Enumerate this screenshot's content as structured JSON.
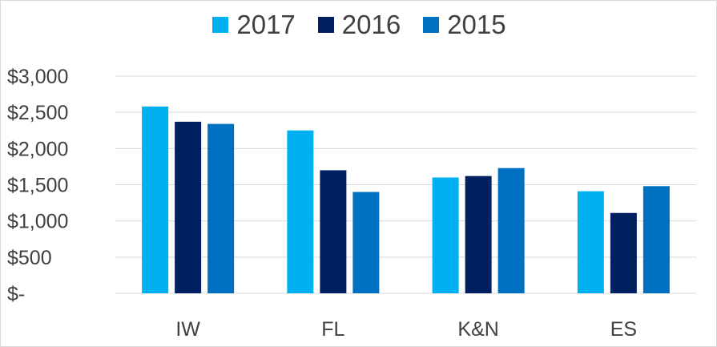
{
  "chart_data": {
    "type": "bar",
    "categories": [
      "IW",
      "FL",
      "K&N",
      "ES"
    ],
    "series": [
      {
        "name": "2017",
        "color": "#00b0f0",
        "values": [
          2580,
          2250,
          1600,
          1410
        ]
      },
      {
        "name": "2016",
        "color": "#002060",
        "values": [
          2370,
          1700,
          1620,
          1110
        ]
      },
      {
        "name": "2015",
        "color": "#0070c0",
        "values": [
          2340,
          1400,
          1730,
          1480
        ]
      }
    ],
    "y_ticks": [
      0,
      500,
      1000,
      1500,
      2000,
      2500,
      3000
    ],
    "y_tick_labels": [
      "$-",
      "$500",
      "$1,000",
      "$1,500",
      "$2,000",
      "$2,500",
      "$3,000"
    ],
    "ylim": [
      0,
      3000
    ],
    "grid": true,
    "legend_position": "top"
  }
}
